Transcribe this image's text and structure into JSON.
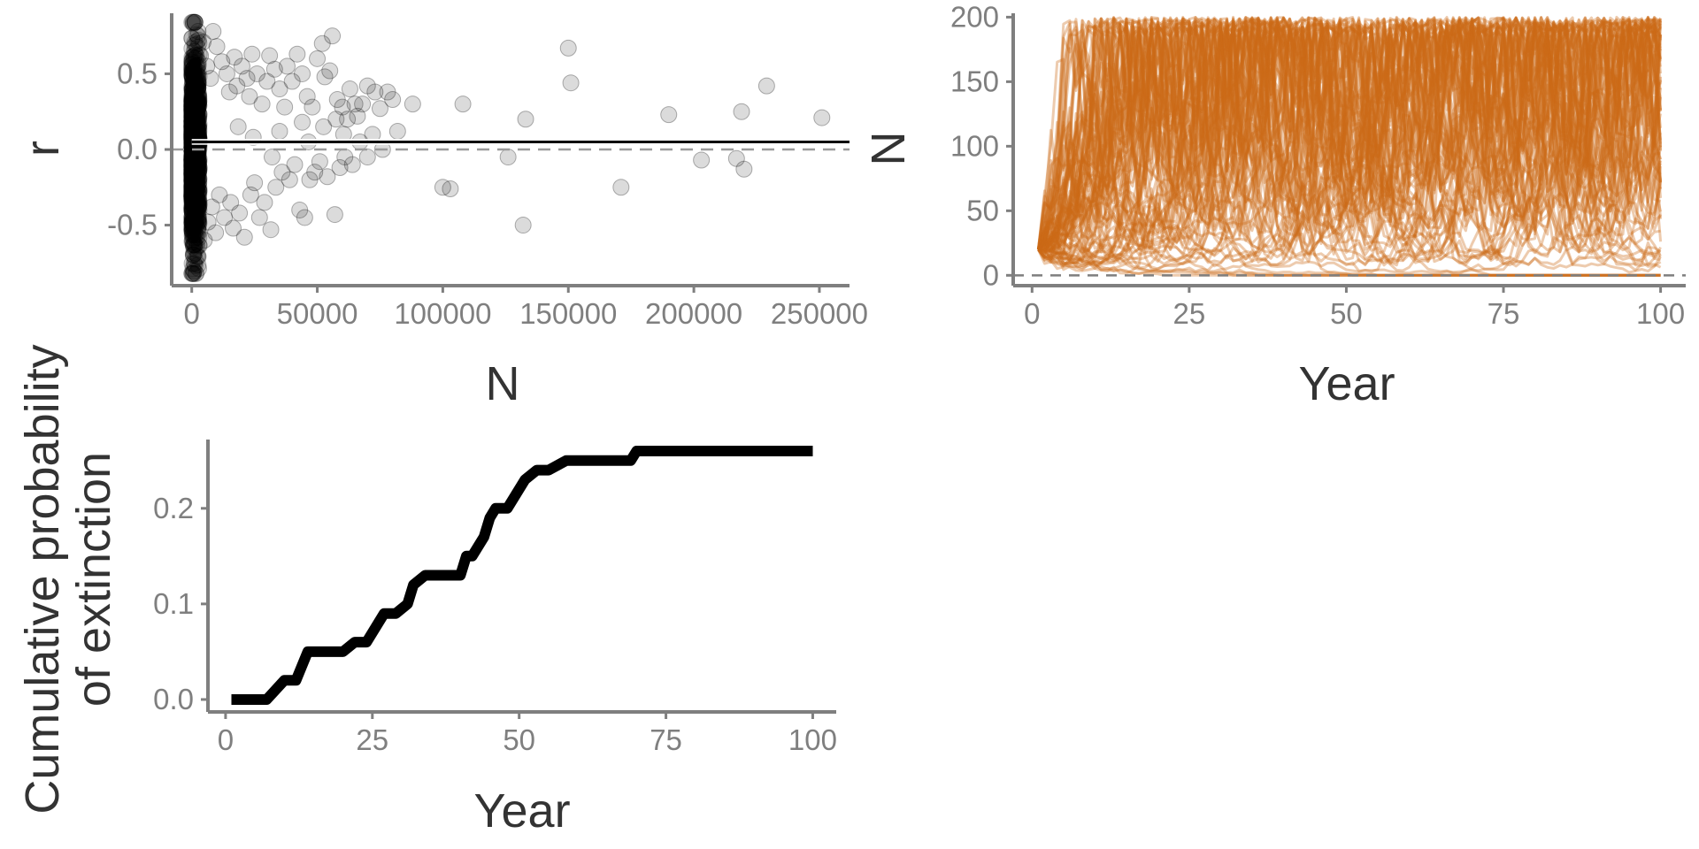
{
  "chart_data": [
    {
      "type": "scatter",
      "xlabel": "N",
      "ylabel": "r",
      "xlim": [
        -8000,
        262000
      ],
      "ylim": [
        -0.9,
        0.9
      ],
      "x_ticks": [
        0,
        50000,
        100000,
        150000,
        200000,
        250000
      ],
      "x_tick_labels": [
        "0",
        "50000",
        "100000",
        "150000",
        "200000",
        "250000"
      ],
      "y_ticks": [
        0.5,
        0.0,
        -0.5
      ],
      "y_tick_labels": [
        "0.5",
        "0.0",
        "-0.5"
      ],
      "point_color": "#000000",
      "point_opacity": 0.14,
      "dense_cluster": {
        "x_range": [
          0,
          3000
        ],
        "y_range": [
          -0.82,
          0.84
        ],
        "count": 1400
      },
      "spread_points": [
        [
          2500,
          0.78
        ],
        [
          3500,
          0.62
        ],
        [
          4500,
          0.71
        ],
        [
          6000,
          0.55
        ],
        [
          7500,
          0.47
        ],
        [
          8500,
          0.78
        ],
        [
          10000,
          0.68
        ],
        [
          12000,
          0.58
        ],
        [
          14000,
          0.5
        ],
        [
          15000,
          0.38
        ],
        [
          17000,
          0.61
        ],
        [
          18000,
          0.42
        ],
        [
          20000,
          0.55
        ],
        [
          22000,
          0.47
        ],
        [
          23000,
          0.35
        ],
        [
          24000,
          0.63
        ],
        [
          26000,
          0.5
        ],
        [
          28000,
          0.3
        ],
        [
          30000,
          0.45
        ],
        [
          31000,
          0.62
        ],
        [
          33000,
          0.53
        ],
        [
          35000,
          0.4
        ],
        [
          37000,
          0.28
        ],
        [
          38000,
          0.55
        ],
        [
          40000,
          0.45
        ],
        [
          42000,
          0.63
        ],
        [
          44000,
          0.5
        ],
        [
          46000,
          0.35
        ],
        [
          48000,
          0.28
        ],
        [
          50000,
          0.6
        ],
        [
          52000,
          0.7
        ],
        [
          53000,
          0.48
        ],
        [
          55000,
          0.52
        ],
        [
          56000,
          0.75
        ],
        [
          58000,
          0.33
        ],
        [
          60000,
          0.28
        ],
        [
          62000,
          0.2
        ],
        [
          63000,
          0.4
        ],
        [
          66000,
          0.22
        ],
        [
          68000,
          0.3
        ],
        [
          70000,
          0.42
        ],
        [
          73000,
          0.38
        ],
        [
          75000,
          0.27
        ],
        [
          78000,
          0.38
        ],
        [
          80000,
          0.33
        ],
        [
          88000,
          0.3
        ],
        [
          108000,
          0.3
        ],
        [
          133000,
          0.2
        ],
        [
          150000,
          0.67
        ],
        [
          151000,
          0.44
        ],
        [
          190000,
          0.23
        ],
        [
          219000,
          0.25
        ],
        [
          229000,
          0.42
        ],
        [
          251000,
          0.21
        ],
        [
          5000,
          -0.6
        ],
        [
          6500,
          -0.48
        ],
        [
          8000,
          -0.38
        ],
        [
          9500,
          -0.55
        ],
        [
          11000,
          -0.3
        ],
        [
          13000,
          -0.45
        ],
        [
          15500,
          -0.35
        ],
        [
          16500,
          -0.52
        ],
        [
          19000,
          -0.42
        ],
        [
          21000,
          -0.58
        ],
        [
          23500,
          -0.3
        ],
        [
          25000,
          -0.22
        ],
        [
          27000,
          -0.45
        ],
        [
          29000,
          -0.35
        ],
        [
          31500,
          -0.53
        ],
        [
          33500,
          -0.25
        ],
        [
          36000,
          -0.15
        ],
        [
          39000,
          -0.2
        ],
        [
          41000,
          -0.1
        ],
        [
          43000,
          -0.4
        ],
        [
          45000,
          -0.45
        ],
        [
          47000,
          -0.2
        ],
        [
          49000,
          -0.15
        ],
        [
          51000,
          -0.08
        ],
        [
          54000,
          -0.18
        ],
        [
          57000,
          -0.43
        ],
        [
          59000,
          -0.12
        ],
        [
          61000,
          -0.05
        ],
        [
          64000,
          -0.1
        ],
        [
          67000,
          0.05
        ],
        [
          70000,
          -0.05
        ],
        [
          72000,
          0.1
        ],
        [
          76000,
          0.0
        ],
        [
          82000,
          0.12
        ],
        [
          100000,
          -0.25
        ],
        [
          103000,
          -0.26
        ],
        [
          126000,
          -0.05
        ],
        [
          132000,
          -0.5
        ],
        [
          171000,
          -0.25
        ],
        [
          203000,
          -0.07
        ],
        [
          217000,
          -0.06
        ],
        [
          220000,
          -0.13
        ],
        [
          18500,
          0.15
        ],
        [
          24500,
          0.08
        ],
        [
          32000,
          -0.05
        ],
        [
          35000,
          0.12
        ],
        [
          44000,
          0.18
        ],
        [
          46500,
          0.05
        ],
        [
          52500,
          0.15
        ],
        [
          57500,
          0.2
        ],
        [
          60500,
          0.1
        ],
        [
          65000,
          0.3
        ]
      ],
      "fit_line": {
        "x": [
          0,
          262000
        ],
        "y": [
          0.05,
          0.05
        ],
        "color": "#000000"
      },
      "ci_band": {
        "x": [
          0,
          262000
        ],
        "y_low": [
          0.03,
          0.03
        ],
        "y_high": [
          0.07,
          0.07
        ],
        "x_end": 100000
      },
      "reference_line": {
        "y": 0.0,
        "style": "dashed",
        "color": "#9a9a9a"
      }
    },
    {
      "type": "line",
      "xlabel": "Year",
      "ylabel": "N",
      "xlim": [
        -3,
        104
      ],
      "ylim": [
        -8,
        203
      ],
      "x_ticks": [
        0,
        25,
        50,
        75,
        100
      ],
      "x_tick_labels": [
        "0",
        "25",
        "50",
        "75",
        "100"
      ],
      "y_ticks": [
        0,
        50,
        100,
        150,
        200
      ],
      "y_tick_labels": [
        "0",
        "50",
        "100",
        "150",
        "200"
      ],
      "series_color": "#cc6a17",
      "series_opacity": 0.35,
      "n_series": 100,
      "start_value": 20,
      "year_range": [
        1,
        100
      ],
      "carrying_capacity_max": 200,
      "reference_line": {
        "y": 0,
        "style": "dashed",
        "color": "#7f7f7f"
      }
    },
    {
      "type": "line",
      "xlabel": "Year",
      "ylabel": "Cumulative probability\nof extinction",
      "xlim": [
        -3,
        104
      ],
      "ylim": [
        -0.013,
        0.272
      ],
      "x_ticks": [
        0,
        25,
        50,
        75,
        100
      ],
      "x_tick_labels": [
        "0",
        "25",
        "50",
        "75",
        "100"
      ],
      "y_ticks": [
        0.0,
        0.1,
        0.2
      ],
      "y_tick_labels": [
        "0.0",
        "0.1",
        "0.2"
      ],
      "line_color": "#000000",
      "series": [
        {
          "x": [
            1,
            7,
            10,
            12,
            14,
            20,
            22,
            24,
            27,
            29,
            31,
            32,
            34,
            40,
            41,
            42,
            44,
            45,
            46,
            48,
            49,
            51,
            53,
            55,
            58,
            65,
            69,
            70,
            100
          ],
          "y": [
            0.0,
            0.0,
            0.02,
            0.02,
            0.05,
            0.05,
            0.06,
            0.06,
            0.09,
            0.09,
            0.1,
            0.12,
            0.13,
            0.13,
            0.15,
            0.15,
            0.17,
            0.19,
            0.2,
            0.2,
            0.21,
            0.23,
            0.24,
            0.24,
            0.25,
            0.25,
            0.25,
            0.26,
            0.26
          ]
        }
      ]
    }
  ]
}
